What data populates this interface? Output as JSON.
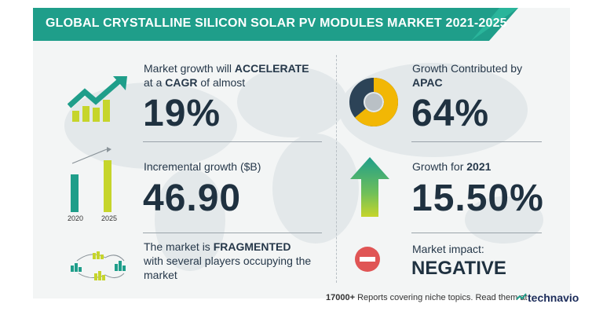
{
  "title": "GLOBAL CRYSTALLINE SILICON SOLAR PV MODULES MARKET 2021-2025",
  "left": {
    "growth": {
      "line1_pre": "Market growth will ",
      "line1_bold": "ACCELERATE",
      "line2_pre": "at a ",
      "line2_bold": "CAGR",
      "line2_post": " of almost",
      "value": "19%"
    },
    "incremental": {
      "label": "Incremental growth ($B)",
      "value": "46.90",
      "year_start": "2020",
      "year_end": "2025"
    },
    "fragmented": {
      "line1_pre": "The market is ",
      "line1_bold": "FRAGMENTED",
      "line2": "with several players occupying the",
      "line3": "market"
    }
  },
  "right": {
    "region": {
      "line1": "Growth Contributed by",
      "line2": "APAC",
      "value": "64%",
      "donut_share": 0.64
    },
    "yoy": {
      "label_pre": "Growth for ",
      "label_bold": "2021",
      "value": "15.50%"
    },
    "impact": {
      "label": "Market impact:",
      "value": "NEGATIVE"
    }
  },
  "footer": {
    "count": "17000+",
    "text": " Reports covering niche topics. Read them at",
    "brand": "technavio"
  },
  "colors": {
    "teal": "#1f9e8a",
    "yellow_green": "#c6d52b",
    "navy": "#2c4357",
    "gold": "#f2b705",
    "red": "#e05555"
  }
}
